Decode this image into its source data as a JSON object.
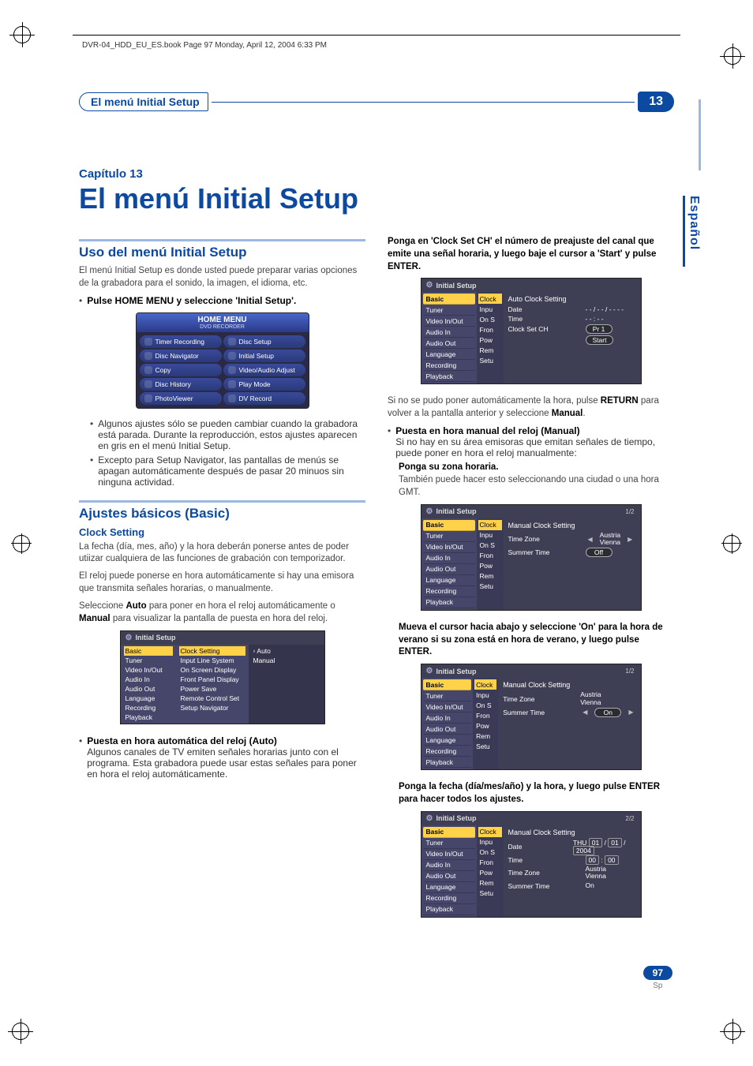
{
  "print": {
    "header_text": "DVR-04_HDD_EU_ES.book  Page 97  Monday, April 12, 2004  6:33 PM"
  },
  "titleBar": {
    "section": "El menú Initial Setup",
    "chip": "13"
  },
  "sideTab": "Español",
  "chapter": {
    "kicker": "Capítulo 13",
    "title": "El menú Initial Setup"
  },
  "leftCol": {
    "h2a": "Uso del menú Initial Setup",
    "p1": "El menú Initial Setup es donde usted puede preparar varias opciones de la grabadora para el sonido, la imagen, el idioma, etc.",
    "b1": "Pulse HOME MENU y seleccione 'Initial Setup'.",
    "homeMenu": {
      "title": "HOME MENU",
      "sub": "DVD RECORDER",
      "items": [
        "Timer Recording",
        "Disc Setup",
        "Disc Navigator",
        "Initial Setup",
        "Copy",
        "Video/Audio Adjust",
        "Disc History",
        "Play Mode",
        "PhotoViewer",
        "DV Record"
      ]
    },
    "sub_b1": "Algunos ajustes sólo se pueden cambiar cuando la grabadora está parada. Durante la reproducción, estos ajustes aparecen en gris en el menú Initial Setup.",
    "sub_b2": "Excepto para Setup Navigator, las pantallas de menús se apagan automáticamente después de pasar 20 minuos sin ninguna actividad.",
    "h2b": "Ajustes básicos (Basic)",
    "h3a": "Clock Setting",
    "p2": "La fecha (día, mes, año) y la hora deberán ponerse antes de poder utiizar cualquiera de las funciones de grabación con temporizador.",
    "p3": "El reloj puede ponerse en hora automáticamente si hay una emisora que transmita señales horarias, o manualmente.",
    "p4a": "Seleccione ",
    "p4b": "Auto",
    "p4c": " para poner en hora el reloj automáticamente o ",
    "p4d": "Manual",
    "p4e": " para visualizar la pantalla de puesta en hora del reloj.",
    "osd1": {
      "title": "Initial Setup",
      "nav": [
        "Basic",
        "Tuner",
        "Video In/Out",
        "Audio In",
        "Audio Out",
        "Language",
        "Recording",
        "Playback"
      ],
      "mid": [
        "Clock Setting",
        "Input Line System",
        "On Screen Display",
        "Front Panel Display",
        "Power Save",
        "Remote Control Set",
        "Setup Navigator"
      ],
      "opts": [
        "Auto",
        "Manual"
      ],
      "navSelIndex": 0
    },
    "b2_label": "Puesta en hora automática del reloj (Auto)",
    "b2_text": "Algunos canales de TV emiten señales horarias junto con el programa. Esta grabadora puede usar estas señales para poner en hora el reloj automáticamente."
  },
  "rightCol": {
    "lead": "Ponga en 'Clock Set CH' el número de preajuste del canal que emite una señal horaria, y luego baje el cursor a 'Start' y pulse ENTER.",
    "osd_auto": {
      "title": "Initial Setup",
      "nav": [
        "Basic",
        "Tuner",
        "Video In/Out",
        "Audio In",
        "Audio Out",
        "Language",
        "Recording",
        "Playback"
      ],
      "mid": [
        "Clock",
        "Inpu",
        "On S",
        "Fron",
        "Pow",
        "Rem",
        "Setu"
      ],
      "heading": "Auto Clock Setting",
      "rows": [
        {
          "lbl": "Date",
          "val": "- - / - - / - - - -"
        },
        {
          "lbl": "Time",
          "val": "- - : - -"
        },
        {
          "lbl": "Clock Set CH",
          "val": "Pr 1",
          "pill": true
        },
        {
          "lbl": "",
          "val": "Start",
          "pill": true
        }
      ]
    },
    "p_auto_a": "Si no se pudo poner automáticamente la hora, pulse ",
    "p_auto_b": "RETURN",
    "p_auto_c": " para volver a la pantalla anterior y seleccione ",
    "p_auto_d": "Manual",
    "p_auto_e": ".",
    "b_manual_label": "Puesta en hora manual del reloj (Manual)",
    "b_manual_text": "Si no hay en su área emisoras que emitan señales de tiempo, puede poner en hora el reloj manualmente:",
    "step1_bold": "Ponga su zona horaria.",
    "step1_text": "También puede hacer esto seleccionando una ciudad o una hora GMT.",
    "osd_manual1": {
      "title": "Initial Setup",
      "page": "1/2",
      "heading": "Manual Clock Setting",
      "rows": [
        {
          "lbl": "Time Zone",
          "val": "Austria\nVienna",
          "arrows": true
        },
        {
          "lbl": "Summer Time",
          "val": "Off",
          "pill": true
        }
      ]
    },
    "step2": "Mueva el cursor hacia abajo y seleccione 'On' para la hora de verano si su zona está en hora de verano, y luego pulse ENTER.",
    "osd_manual2": {
      "title": "Initial Setup",
      "page": "1/2",
      "heading": "Manual Clock Setting",
      "rows": [
        {
          "lbl": "Time Zone",
          "val": "Austria\nVienna"
        },
        {
          "lbl": "Summer Time",
          "val": "On",
          "pill": true,
          "arrows": true
        }
      ]
    },
    "step3": "Ponga la fecha (día/mes/año) y la hora, y luego pulse ENTER para hacer todos los ajustes.",
    "osd_manual3": {
      "title": "Initial Setup",
      "page": "2/2",
      "heading": "Manual Clock Setting",
      "rows": [
        {
          "lbl": "Date",
          "val": "THU  01 / 01 / 2004",
          "boxes": true
        },
        {
          "lbl": "Time",
          "val": "00 : 00",
          "boxes": true
        },
        {
          "lbl": "Time Zone",
          "val": "Austria\nVienna"
        },
        {
          "lbl": "Summer Time",
          "val": "On"
        }
      ]
    },
    "shared_nav": [
      "Basic",
      "Tuner",
      "Video In/Out",
      "Audio In",
      "Audio Out",
      "Language",
      "Recording",
      "Playback"
    ],
    "shared_mid": [
      "Clock",
      "Inpu",
      "On S",
      "Fron",
      "Pow",
      "Rem",
      "Setu"
    ]
  },
  "footer": {
    "page": "97",
    "lang": "Sp"
  },
  "colors": {
    "brand": "#0b4aa0",
    "brand_light": "#9bb8e0",
    "osd_bg": "#3e3e54",
    "osd_nav": "#46466a",
    "osd_sel": "#ffd24a"
  }
}
